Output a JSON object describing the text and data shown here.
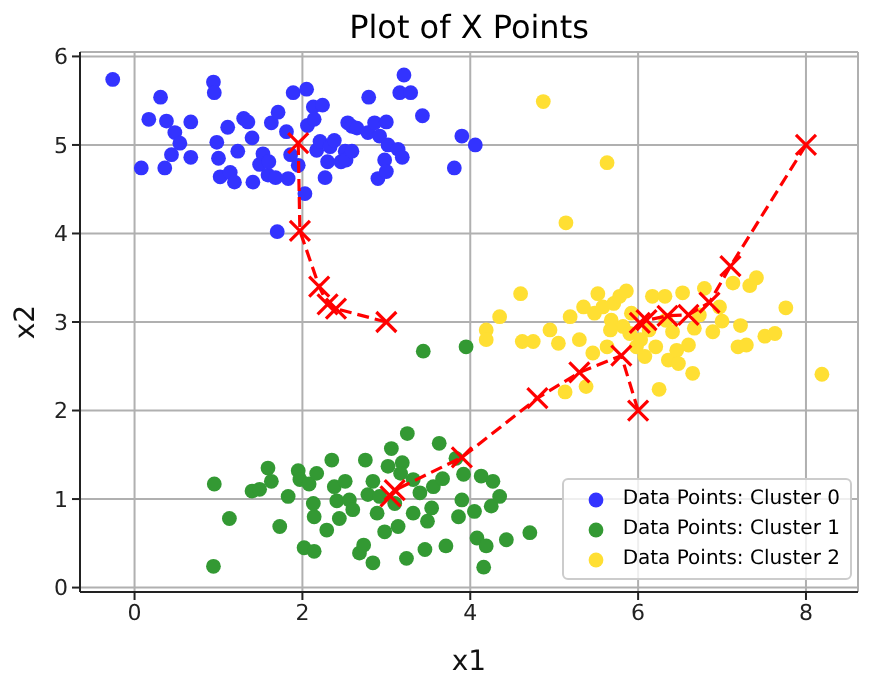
{
  "chart_data": {
    "type": "scatter",
    "title": "Plot of X Points",
    "xlabel": "x1",
    "ylabel": "x2",
    "xlim": [
      -0.65,
      8.62
    ],
    "ylim": [
      -0.05,
      6.05
    ],
    "xticks": [
      0,
      2,
      4,
      6,
      8
    ],
    "yticks": [
      0,
      1,
      2,
      3,
      4,
      5,
      6
    ],
    "grid": true,
    "legend": "bottom right",
    "marker": "circle",
    "series": [
      {
        "name": "Data Points: Cluster 0",
        "color": "#3333ff",
        "x": [
          -0.26,
          0.08,
          0.17,
          0.31,
          0.38,
          0.36,
          0.48,
          0.54,
          0.44,
          0.67,
          0.67,
          0.94,
          0.95,
          0.98,
          1.02,
          1.0,
          1.11,
          1.14,
          1.19,
          1.23,
          1.3,
          1.35,
          1.4,
          1.41,
          1.49,
          1.53,
          1.59,
          1.6,
          1.63,
          1.71,
          1.68,
          1.7,
          1.83,
          1.81,
          1.89,
          1.86,
          1.95,
          2.05,
          2.03,
          2.06,
          2.13,
          2.14,
          2.17,
          2.21,
          2.24,
          2.27,
          2.3,
          2.33,
          2.38,
          2.46,
          2.51,
          2.54,
          2.59,
          2.65,
          2.52,
          2.59,
          2.79,
          2.78,
          2.86,
          2.9,
          2.92,
          3.0,
          3.02,
          2.98,
          3.0,
          3.14,
          3.19,
          3.16,
          3.21,
          3.29,
          3.43,
          3.81,
          3.9,
          4.06
        ],
        "values": [
          5.74,
          4.74,
          5.29,
          5.54,
          5.27,
          4.74,
          5.14,
          5.02,
          4.89,
          5.26,
          4.86,
          5.71,
          5.59,
          5.03,
          4.64,
          4.85,
          5.2,
          4.69,
          4.58,
          4.93,
          5.3,
          5.26,
          5.08,
          4.58,
          4.78,
          4.9,
          4.66,
          4.81,
          5.25,
          5.37,
          4.63,
          4.02,
          4.62,
          5.15,
          5.59,
          4.89,
          4.77,
          5.63,
          4.45,
          5.22,
          5.43,
          5.29,
          4.94,
          5.04,
          5.45,
          4.63,
          4.81,
          4.98,
          5.05,
          4.81,
          4.93,
          5.25,
          5.21,
          5.19,
          4.83,
          4.93,
          5.54,
          5.14,
          5.25,
          4.62,
          5.1,
          5.26,
          5.0,
          4.83,
          4.7,
          4.95,
          4.86,
          5.59,
          5.79,
          5.59,
          5.33,
          4.74,
          5.1,
          5.0
        ]
      },
      {
        "name": "Data Points: Cluster 1",
        "color": "#339933",
        "x": [
          0.95,
          0.94,
          1.13,
          1.4,
          1.49,
          1.59,
          1.63,
          1.73,
          1.83,
          1.95,
          1.97,
          2.02,
          2.08,
          2.14,
          2.14,
          2.13,
          2.17,
          2.29,
          2.35,
          2.38,
          2.41,
          2.44,
          2.51,
          2.56,
          2.6,
          2.68,
          2.73,
          2.75,
          2.78,
          2.84,
          2.89,
          2.92,
          2.98,
          3.02,
          3.06,
          3.1,
          3.14,
          3.19,
          3.24,
          3.25,
          3.32,
          3.4,
          3.46,
          3.49,
          3.54,
          3.56,
          3.63,
          3.67,
          3.71,
          3.83,
          3.86,
          3.9,
          3.92,
          4.05,
          4.08,
          4.13,
          4.16,
          4.19,
          4.25,
          4.27,
          4.35,
          4.43,
          4.71,
          3.44,
          3.95,
          3.17,
          3.32,
          2.84
        ],
        "values": [
          1.17,
          0.24,
          0.78,
          1.09,
          1.11,
          1.35,
          1.2,
          0.69,
          1.03,
          1.32,
          1.22,
          0.45,
          1.17,
          0.41,
          0.8,
          0.95,
          1.29,
          0.65,
          1.44,
          1.14,
          0.98,
          0.78,
          1.2,
          0.99,
          0.88,
          0.39,
          0.48,
          1.44,
          1.05,
          0.28,
          0.84,
          1.03,
          0.63,
          1.37,
          1.57,
          0.95,
          0.69,
          1.41,
          0.33,
          1.74,
          1.22,
          1.07,
          0.43,
          0.75,
          0.9,
          1.14,
          1.63,
          1.23,
          0.47,
          1.46,
          0.8,
          0.99,
          1.28,
          0.86,
          0.56,
          1.26,
          0.23,
          0.47,
          0.92,
          1.2,
          1.03,
          0.54,
          0.62,
          2.67,
          2.72,
          1.29,
          0.84,
          1.2
        ]
      },
      {
        "name": "Data Points: Cluster 2",
        "color": "#ffdf33",
        "x": [
          4.87,
          5.63,
          5.14,
          4.6,
          4.35,
          4.19,
          4.19,
          4.62,
          4.75,
          4.95,
          5.05,
          5.13,
          5.19,
          5.3,
          5.35,
          5.38,
          5.46,
          5.52,
          5.58,
          5.63,
          5.68,
          5.71,
          5.78,
          5.86,
          5.82,
          5.9,
          5.92,
          5.98,
          6.03,
          6.08,
          6.13,
          6.17,
          6.21,
          6.25,
          6.32,
          6.36,
          6.41,
          6.46,
          6.48,
          6.53,
          6.6,
          6.65,
          6.67,
          6.73,
          6.79,
          6.89,
          6.97,
          7.0,
          7.13,
          7.19,
          7.22,
          7.29,
          7.33,
          7.41,
          7.51,
          7.63,
          7.76,
          8.19,
          5.48,
          5.67,
          6.33
        ],
        "values": [
          5.49,
          4.8,
          4.12,
          3.32,
          3.06,
          2.91,
          2.8,
          2.78,
          2.78,
          2.91,
          2.76,
          2.21,
          3.06,
          2.8,
          3.17,
          2.27,
          2.65,
          3.32,
          3.17,
          2.72,
          3.02,
          3.21,
          3.29,
          3.35,
          2.95,
          2.87,
          3.1,
          2.72,
          2.8,
          2.61,
          2.91,
          3.29,
          2.72,
          2.24,
          3.29,
          2.57,
          2.89,
          2.68,
          2.53,
          3.33,
          2.74,
          2.42,
          2.93,
          3.08,
          3.38,
          2.89,
          3.17,
          3.01,
          3.44,
          2.72,
          2.96,
          2.74,
          3.41,
          3.5,
          2.84,
          2.87,
          3.16,
          2.41,
          3.1,
          2.91,
          3.02
        ]
      },
      {
        "type": "line",
        "color": "#ff0000",
        "marker": "cross",
        "line_style": "dashed",
        "x": [
          3.0,
          2.4,
          2.3,
          2.2,
          1.97,
          1.95
        ],
        "values": [
          3.0,
          3.15,
          3.2,
          3.4,
          4.03,
          5.02
        ]
      },
      {
        "type": "line",
        "color": "#ff0000",
        "marker": "cross",
        "line_style": "dashed",
        "x": [
          6.0,
          5.8,
          5.3,
          4.8,
          3.9,
          3.1,
          3.05
        ],
        "values": [
          2.0,
          2.62,
          2.43,
          2.14,
          1.47,
          1.1,
          1.03
        ]
      },
      {
        "type": "line",
        "color": "#ff0000",
        "marker": "cross",
        "line_style": "dashed",
        "x": [
          8.0,
          7.1,
          6.85,
          6.6,
          6.35,
          6.1,
          6.02
        ],
        "values": [
          5.0,
          3.63,
          3.22,
          3.08,
          3.07,
          3.02,
          2.99
        ]
      }
    ]
  }
}
